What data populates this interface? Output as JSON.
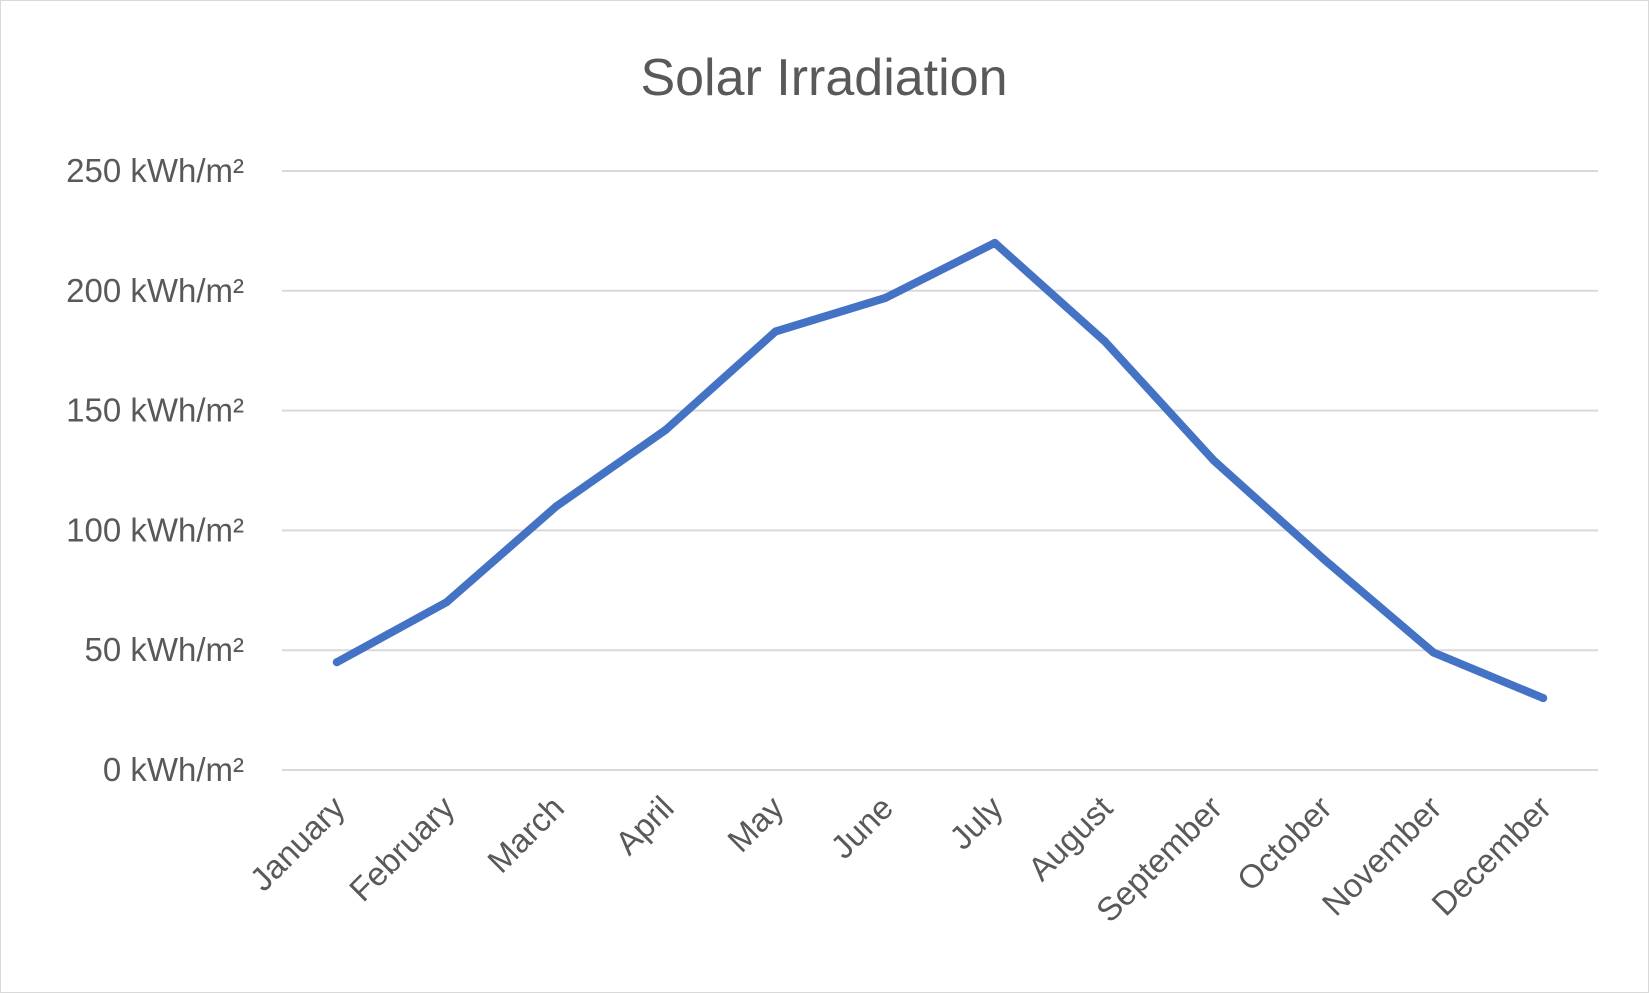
{
  "colors": {
    "series": "#4472c4",
    "grid": "#d9d9d9",
    "text": "#595959",
    "border": "#d9d9d9"
  },
  "chart_data": {
    "type": "line",
    "title": "Solar Irradiation",
    "xlabel": "",
    "ylabel": "",
    "categories": [
      "January",
      "February",
      "March",
      "April",
      "May",
      "June",
      "July",
      "August",
      "September",
      "October",
      "November",
      "December"
    ],
    "series": [
      {
        "values": [
          45,
          70,
          110,
          142,
          183,
          197,
          220,
          179,
          129,
          88,
          49,
          30
        ]
      }
    ],
    "ylim": [
      0,
      250
    ],
    "yticks": [
      0,
      50,
      100,
      150,
      200,
      250
    ],
    "ytick_labels": [
      "0 kWh/m²",
      "50 kWh/m²",
      "100 kWh/m²",
      "150 kWh/m²",
      "200 kWh/m²",
      "250 kWh/m²"
    ],
    "grid": true,
    "legend": "none"
  }
}
